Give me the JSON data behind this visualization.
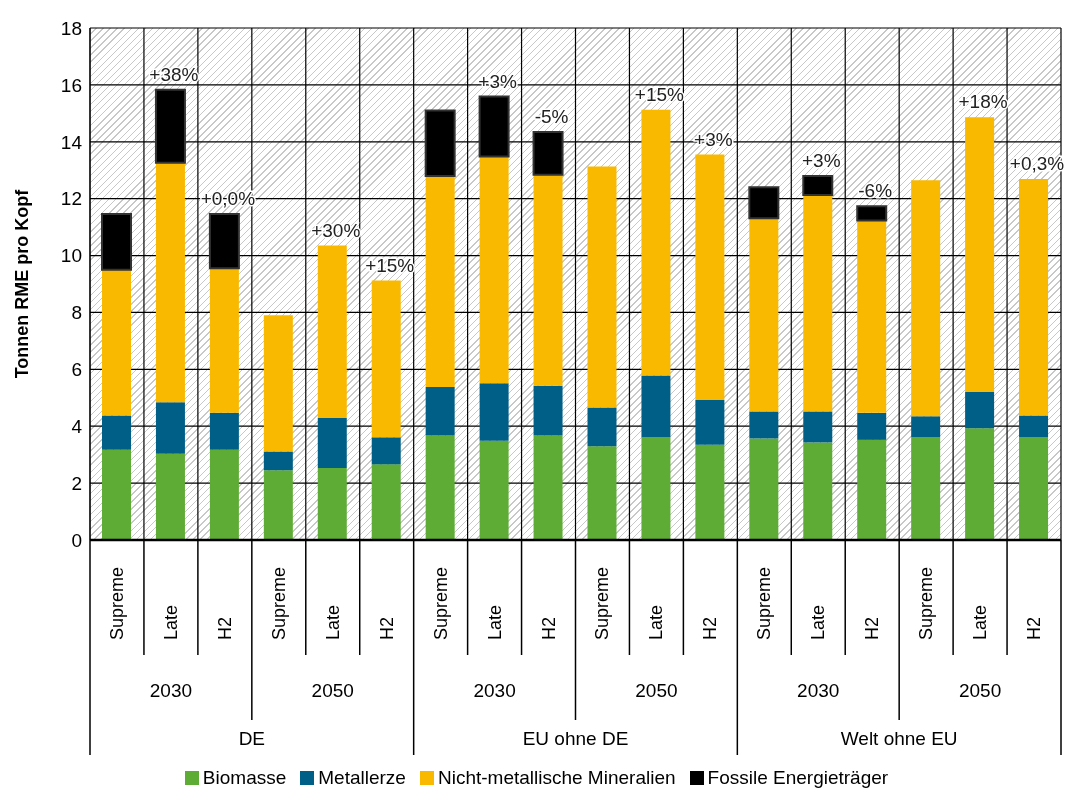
{
  "chart_data": {
    "type": "bar",
    "stacked": true,
    "ylabel": "Tonnen RME pro Kopf",
    "categories": [
      "Supreme",
      "Late",
      "H2",
      "Supreme",
      "Late",
      "H2",
      "Supreme",
      "Late",
      "H2",
      "Supreme",
      "Late",
      "H2",
      "Supreme",
      "Late",
      "H2",
      "Supreme",
      "Late",
      "H2"
    ],
    "series": [
      {
        "name": "Biomasse",
        "color": "#5eac35",
        "values": [
          3.17,
          3.03,
          3.17,
          2.45,
          2.53,
          2.66,
          3.67,
          3.49,
          3.67,
          3.3,
          3.62,
          3.35,
          3.57,
          3.43,
          3.52,
          3.62,
          3.93,
          3.62
        ]
      },
      {
        "name": "Metallerze",
        "color": "#005f86",
        "values": [
          1.21,
          1.81,
          1.3,
          0.66,
          1.76,
          0.95,
          1.71,
          2.02,
          1.75,
          1.36,
          2.16,
          1.57,
          0.95,
          1.09,
          0.95,
          0.73,
          1.27,
          0.76
        ]
      },
      {
        "name": "Nicht-metallische Mineralien",
        "color": "#f9b900",
        "values": [
          5.12,
          8.42,
          5.08,
          4.79,
          6.06,
          5.51,
          7.42,
          7.97,
          7.42,
          8.47,
          9.35,
          8.63,
          6.79,
          7.61,
          6.76,
          8.3,
          9.66,
          8.31
        ]
      },
      {
        "name": "Fossile Energieträger",
        "color": "#000000",
        "values": [
          1.96,
          2.57,
          1.91,
          null,
          null,
          null,
          2.3,
          2.11,
          1.5,
          null,
          null,
          null,
          1.09,
          0.67,
          0.5,
          null,
          null,
          null
        ]
      }
    ],
    "annotations": [
      "2030",
      "2050",
      "2030",
      "2050",
      "2030",
      "2050",
      "DE",
      "EU ohne DE",
      "Welt ohne EU",
      "+38%",
      "+0,0%",
      "+30%",
      "+15%",
      "+3%",
      "-5%",
      "+15%",
      "+3%",
      "+3%",
      "-6%",
      "+18%",
      "+0,3%"
    ],
    "ylim": [
      0,
      18
    ],
    "yticks": [
      0,
      2,
      4,
      6,
      8,
      10,
      12,
      14,
      16,
      18
    ],
    "grid": true,
    "legend": "bottom"
  }
}
